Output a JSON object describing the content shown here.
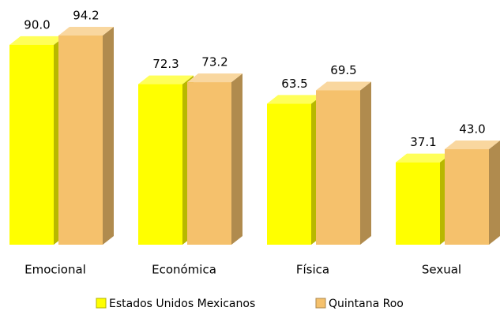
{
  "chart_data": {
    "type": "bar3d",
    "categories": [
      "Emocional",
      "Económica",
      "Física",
      "Sexual"
    ],
    "series": [
      {
        "name": "Estados Unidos Mexicanos",
        "color": "#ffff00",
        "values": [
          90.0,
          72.3,
          63.5,
          37.1
        ],
        "value_labels": [
          "90.0",
          "72.3",
          "63.5",
          "37.1"
        ]
      },
      {
        "name": "Quintana Roo",
        "color": "#f5c16c",
        "values": [
          94.2,
          73.2,
          69.5,
          43.0
        ],
        "value_labels": [
          "94.2",
          "73.2",
          "69.5",
          "43.0"
        ]
      }
    ],
    "legend": "bottom"
  }
}
